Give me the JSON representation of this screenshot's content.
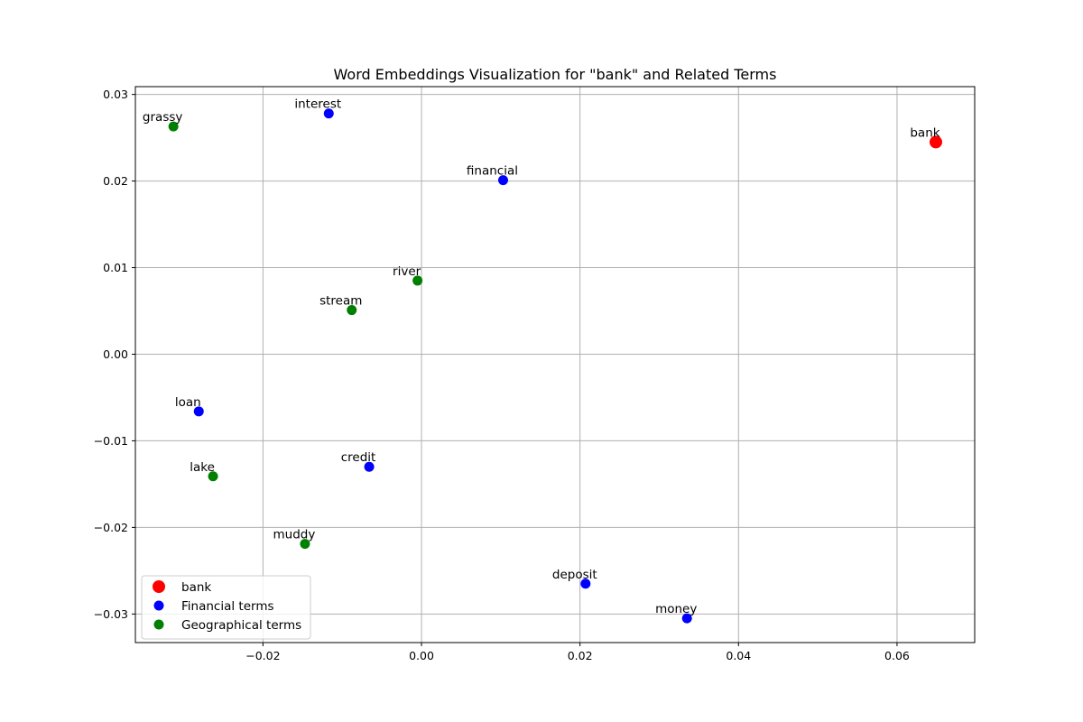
{
  "chart_data": {
    "type": "scatter",
    "title": "Word Embeddings Visualization for \"bank\" and Related Terms",
    "xlabel": "",
    "ylabel": "",
    "xlim": [
      -0.0361,
      0.0698
    ],
    "ylim": [
      -0.0333,
      0.0309
    ],
    "grid": true,
    "legend_position": "lower-left",
    "x_ticks": [
      -0.02,
      0.0,
      0.02,
      0.04,
      0.06
    ],
    "x_tick_labels": [
      "−0.02",
      "0.00",
      "0.02",
      "0.04",
      "0.06"
    ],
    "y_ticks": [
      -0.03,
      -0.02,
      -0.01,
      0.0,
      0.01,
      0.02,
      0.03
    ],
    "y_tick_labels": [
      "−0.03",
      "−0.02",
      "−0.01",
      "0.00",
      "0.01",
      "0.02",
      "0.03"
    ],
    "series": [
      {
        "name": "bank",
        "color": "#ff0000",
        "points": [
          {
            "word": "bank",
            "x": 0.0649,
            "y": 0.0245
          }
        ]
      },
      {
        "name": "Financial terms",
        "color": "#0000ff",
        "points": [
          {
            "word": "interest",
            "x": -0.0117,
            "y": 0.0278
          },
          {
            "word": "financial",
            "x": 0.0103,
            "y": 0.0201
          },
          {
            "word": "loan",
            "x": -0.0281,
            "y": -0.0066
          },
          {
            "word": "credit",
            "x": -0.0066,
            "y": -0.013
          },
          {
            "word": "deposit",
            "x": 0.0207,
            "y": -0.0265
          },
          {
            "word": "money",
            "x": 0.0335,
            "y": -0.0305
          }
        ]
      },
      {
        "name": "Geographical terms",
        "color": "#008000",
        "points": [
          {
            "word": "grassy",
            "x": -0.0313,
            "y": 0.0263
          },
          {
            "word": "river",
            "x": -0.0005,
            "y": 0.0085
          },
          {
            "word": "stream",
            "x": -0.0088,
            "y": 0.0051
          },
          {
            "word": "lake",
            "x": -0.0263,
            "y": -0.0141
          },
          {
            "word": "muddy",
            "x": -0.0147,
            "y": -0.0219
          }
        ]
      }
    ]
  }
}
